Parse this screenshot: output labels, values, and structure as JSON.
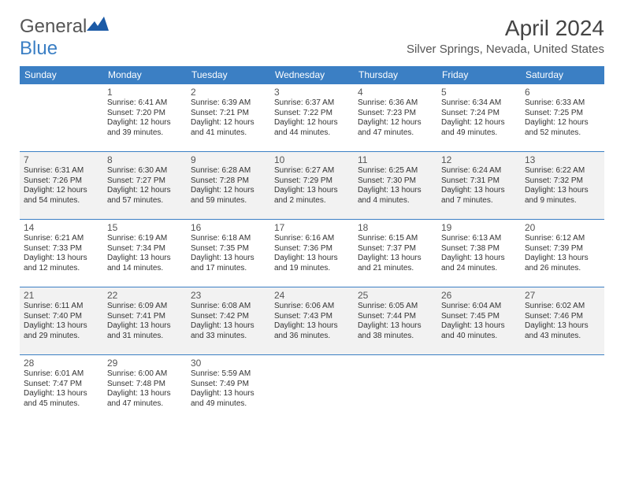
{
  "logo": {
    "textGray": "General",
    "textBlue": "Blue"
  },
  "title": "April 2024",
  "location": "Silver Springs, Nevada, United States",
  "colors": {
    "headerBar": "#3b7fc4",
    "headerText": "#ffffff",
    "altRow": "#f2f2f2",
    "bodyBg": "#ffffff",
    "text": "#333333",
    "titleText": "#444444"
  },
  "dayHeaders": [
    "Sunday",
    "Monday",
    "Tuesday",
    "Wednesday",
    "Thursday",
    "Friday",
    "Saturday"
  ],
  "weeks": [
    {
      "alt": false,
      "days": [
        null,
        {
          "num": "1",
          "sunrise": "6:41 AM",
          "sunset": "7:20 PM",
          "daylight": "12 hours and 39 minutes."
        },
        {
          "num": "2",
          "sunrise": "6:39 AM",
          "sunset": "7:21 PM",
          "daylight": "12 hours and 41 minutes."
        },
        {
          "num": "3",
          "sunrise": "6:37 AM",
          "sunset": "7:22 PM",
          "daylight": "12 hours and 44 minutes."
        },
        {
          "num": "4",
          "sunrise": "6:36 AM",
          "sunset": "7:23 PM",
          "daylight": "12 hours and 47 minutes."
        },
        {
          "num": "5",
          "sunrise": "6:34 AM",
          "sunset": "7:24 PM",
          "daylight": "12 hours and 49 minutes."
        },
        {
          "num": "6",
          "sunrise": "6:33 AM",
          "sunset": "7:25 PM",
          "daylight": "12 hours and 52 minutes."
        }
      ]
    },
    {
      "alt": true,
      "days": [
        {
          "num": "7",
          "sunrise": "6:31 AM",
          "sunset": "7:26 PM",
          "daylight": "12 hours and 54 minutes."
        },
        {
          "num": "8",
          "sunrise": "6:30 AM",
          "sunset": "7:27 PM",
          "daylight": "12 hours and 57 minutes."
        },
        {
          "num": "9",
          "sunrise": "6:28 AM",
          "sunset": "7:28 PM",
          "daylight": "12 hours and 59 minutes."
        },
        {
          "num": "10",
          "sunrise": "6:27 AM",
          "sunset": "7:29 PM",
          "daylight": "13 hours and 2 minutes."
        },
        {
          "num": "11",
          "sunrise": "6:25 AM",
          "sunset": "7:30 PM",
          "daylight": "13 hours and 4 minutes."
        },
        {
          "num": "12",
          "sunrise": "6:24 AM",
          "sunset": "7:31 PM",
          "daylight": "13 hours and 7 minutes."
        },
        {
          "num": "13",
          "sunrise": "6:22 AM",
          "sunset": "7:32 PM",
          "daylight": "13 hours and 9 minutes."
        }
      ]
    },
    {
      "alt": false,
      "days": [
        {
          "num": "14",
          "sunrise": "6:21 AM",
          "sunset": "7:33 PM",
          "daylight": "13 hours and 12 minutes."
        },
        {
          "num": "15",
          "sunrise": "6:19 AM",
          "sunset": "7:34 PM",
          "daylight": "13 hours and 14 minutes."
        },
        {
          "num": "16",
          "sunrise": "6:18 AM",
          "sunset": "7:35 PM",
          "daylight": "13 hours and 17 minutes."
        },
        {
          "num": "17",
          "sunrise": "6:16 AM",
          "sunset": "7:36 PM",
          "daylight": "13 hours and 19 minutes."
        },
        {
          "num": "18",
          "sunrise": "6:15 AM",
          "sunset": "7:37 PM",
          "daylight": "13 hours and 21 minutes."
        },
        {
          "num": "19",
          "sunrise": "6:13 AM",
          "sunset": "7:38 PM",
          "daylight": "13 hours and 24 minutes."
        },
        {
          "num": "20",
          "sunrise": "6:12 AM",
          "sunset": "7:39 PM",
          "daylight": "13 hours and 26 minutes."
        }
      ]
    },
    {
      "alt": true,
      "days": [
        {
          "num": "21",
          "sunrise": "6:11 AM",
          "sunset": "7:40 PM",
          "daylight": "13 hours and 29 minutes."
        },
        {
          "num": "22",
          "sunrise": "6:09 AM",
          "sunset": "7:41 PM",
          "daylight": "13 hours and 31 minutes."
        },
        {
          "num": "23",
          "sunrise": "6:08 AM",
          "sunset": "7:42 PM",
          "daylight": "13 hours and 33 minutes."
        },
        {
          "num": "24",
          "sunrise": "6:06 AM",
          "sunset": "7:43 PM",
          "daylight": "13 hours and 36 minutes."
        },
        {
          "num": "25",
          "sunrise": "6:05 AM",
          "sunset": "7:44 PM",
          "daylight": "13 hours and 38 minutes."
        },
        {
          "num": "26",
          "sunrise": "6:04 AM",
          "sunset": "7:45 PM",
          "daylight": "13 hours and 40 minutes."
        },
        {
          "num": "27",
          "sunrise": "6:02 AM",
          "sunset": "7:46 PM",
          "daylight": "13 hours and 43 minutes."
        }
      ]
    },
    {
      "alt": false,
      "days": [
        {
          "num": "28",
          "sunrise": "6:01 AM",
          "sunset": "7:47 PM",
          "daylight": "13 hours and 45 minutes."
        },
        {
          "num": "29",
          "sunrise": "6:00 AM",
          "sunset": "7:48 PM",
          "daylight": "13 hours and 47 minutes."
        },
        {
          "num": "30",
          "sunrise": "5:59 AM",
          "sunset": "7:49 PM",
          "daylight": "13 hours and 49 minutes."
        },
        null,
        null,
        null,
        null
      ]
    }
  ],
  "labels": {
    "sunrisePrefix": "Sunrise: ",
    "sunsetPrefix": "Sunset: ",
    "daylightPrefix": "Daylight: "
  }
}
